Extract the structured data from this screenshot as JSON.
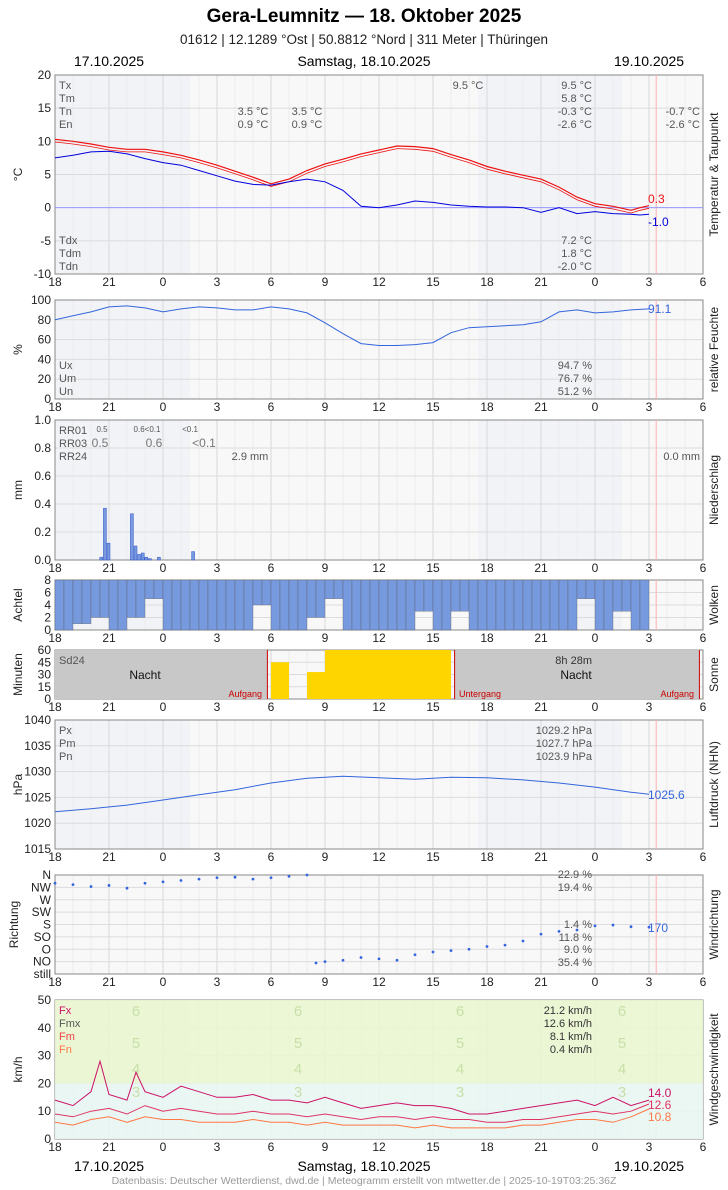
{
  "header": {
    "title": "Gera-Leumnitz  —  18. Oktober 2025",
    "subtitle": "01612  |  12.1289 °Ost  |  50.8812 °Nord  |  311 Meter  |  Thüringen",
    "date_left": "17.10.2025",
    "date_center": "Samstag, 18.10.2025",
    "date_right": "19.10.2025"
  },
  "footer": "Datenbasis: Deutscher Wetterdienst, dwd.de | Meteogramm erstellt von mtwetter.de | 2025-10-19T03:25:36Z",
  "colors": {
    "temp": "#ee1111",
    "dew": "#0000dd",
    "blue": "#3366dd",
    "cloud": "#7799dd",
    "sun": "#ffd500",
    "night": "#c8c8c8",
    "gust": "#cc1166",
    "fm": "#ee4444",
    "fn": "#ff7744"
  },
  "x_axis": {
    "hour_ticks": [
      "18",
      "21",
      "0",
      "3",
      "6",
      "9",
      "12",
      "15",
      "18",
      "21",
      "0",
      "3",
      "6"
    ]
  },
  "chart_data": [
    {
      "id": "temperature",
      "type": "line",
      "ylabel": "°C",
      "side_label": "Temperatur & Taupunkt",
      "ylim": [
        -10,
        20
      ],
      "y_ticks": [
        "20",
        "15",
        "10",
        "5",
        "0",
        "-5",
        "-10"
      ],
      "stats": [
        {
          "label": "Tx",
          "day1": "",
          "day2": "9.5 °C",
          "day3": ""
        },
        {
          "label": "Tm",
          "day1": "",
          "day2": "5.8 °C",
          "day3": ""
        },
        {
          "label": "Tn",
          "day1": "3.5 °C",
          "day2": "-0.3 °C",
          "day3": "-0.7 °C"
        },
        {
          "label": "En",
          "day1": "0.9 °C",
          "day2": "-2.6 °C",
          "day3": "-2.6 °C"
        }
      ],
      "extra_notes": [
        {
          "text": "9.5 °C"
        },
        {
          "text": "3.5 °C"
        },
        {
          "text": "0.9 °C"
        }
      ],
      "dew_stats": [
        {
          "label": "Tdx",
          "value": "7.2 °C"
        },
        {
          "label": "Tdm",
          "value": "1.8 °C"
        },
        {
          "label": "Tdn",
          "value": "-2.0 °C"
        }
      ],
      "last_temp": "0.3",
      "last_dew": "-1.0",
      "series": [
        {
          "name": "temperature",
          "x": [
            -6,
            -5,
            -4,
            -3,
            -2,
            -1,
            0,
            1,
            2,
            3,
            4,
            5,
            6,
            7,
            8,
            9,
            10,
            11,
            12,
            13,
            14,
            15,
            16,
            17,
            18,
            19,
            20,
            21,
            22,
            23,
            24,
            25,
            26,
            26.5,
            27
          ],
          "values": [
            10.3,
            10.0,
            9.6,
            9.1,
            8.8,
            8.8,
            8.4,
            7.9,
            7.2,
            6.4,
            5.5,
            4.6,
            3.6,
            4.3,
            5.6,
            6.6,
            7.3,
            8.1,
            8.7,
            9.3,
            9.2,
            8.9,
            8.0,
            7.2,
            6.2,
            5.5,
            4.9,
            4.3,
            3.1,
            1.6,
            0.6,
            0.2,
            -0.4,
            0.0,
            0.3
          ]
        },
        {
          "name": "dew point",
          "x": [
            -6,
            -5,
            -4,
            -3,
            -2,
            -1,
            0,
            1,
            2,
            3,
            4,
            5,
            6,
            7,
            8,
            9,
            10,
            11,
            12,
            13,
            14,
            15,
            16,
            17,
            18,
            19,
            20,
            21,
            22,
            23,
            24,
            25,
            26,
            26.5,
            27
          ],
          "values": [
            7.5,
            7.9,
            8.4,
            8.5,
            8.1,
            7.4,
            6.8,
            6.4,
            5.6,
            4.8,
            4.0,
            3.5,
            3.4,
            3.9,
            4.3,
            3.9,
            2.6,
            0.2,
            0.0,
            0.4,
            1.0,
            0.8,
            0.4,
            0.2,
            0.1,
            0.1,
            0.0,
            -0.7,
            0.0,
            -0.9,
            -0.6,
            -0.9,
            -1.0,
            -1.1,
            -1.0
          ]
        }
      ]
    },
    {
      "id": "humidity",
      "type": "line",
      "ylabel": "%",
      "side_label": "relative Feuchte",
      "ylim": [
        0,
        100
      ],
      "y_ticks": [
        "100",
        "80",
        "60",
        "40",
        "20",
        "0"
      ],
      "stats": [
        {
          "label": "Ux",
          "value": "94.7 %"
        },
        {
          "label": "Um",
          "value": "76.7 %"
        },
        {
          "label": "Un",
          "value": "51.2 %"
        }
      ],
      "last": "91.1",
      "series": [
        {
          "name": "humidity",
          "x": [
            -6,
            -5,
            -4,
            -3,
            -2,
            -1,
            0,
            1,
            2,
            3,
            4,
            5,
            6,
            7,
            8,
            9,
            10,
            11,
            12,
            13,
            14,
            15,
            16,
            17,
            18,
            19,
            20,
            21,
            22,
            23,
            24,
            25,
            26,
            27
          ],
          "values": [
            80,
            84,
            88,
            93,
            94,
            92,
            88,
            91,
            93,
            92,
            90,
            90,
            93,
            91,
            87,
            77,
            66,
            56,
            54,
            54,
            55,
            57,
            67,
            72,
            73,
            74,
            75,
            78,
            88,
            90,
            87,
            88,
            90,
            91
          ]
        }
      ]
    },
    {
      "id": "precipitation",
      "type": "bar",
      "ylabel": "mm",
      "side_label": "Niederschlag",
      "ylim": [
        0,
        1.0
      ],
      "y_ticks": [
        "1.0",
        "0.8",
        "0.6",
        "0.4",
        "0.2",
        "0.0"
      ],
      "stats": [
        {
          "label": "RR01",
          "notes": [
            "0.5",
            "0.6<0.1",
            "<0.1"
          ]
        },
        {
          "label": "RR03",
          "notes": [
            "0.5",
            "0.6",
            "<0.1"
          ]
        },
        {
          "label": "RR24",
          "notes": [
            "2.9 mm",
            "0.0 mm"
          ]
        }
      ],
      "x": [
        -3.4,
        -3.2,
        -3.0,
        -1.7,
        -1.5,
        -1.3,
        -1.1,
        -0.9,
        -0.7,
        -0.2,
        1.7
      ],
      "values": [
        0.02,
        0.37,
        0.12,
        0.33,
        0.1,
        0.04,
        0.05,
        0.02,
        0.01,
        0.02,
        0.06
      ]
    },
    {
      "id": "clouds",
      "type": "bar",
      "ylabel": "Achtel",
      "side_label": "Wolken",
      "ylim": [
        0,
        8
      ],
      "y_ticks": [
        "8",
        "6",
        "4",
        "2",
        "0"
      ],
      "x": [
        -6,
        -5,
        -4,
        -3,
        -2,
        -1,
        0,
        1,
        2,
        3,
        4,
        5,
        6,
        7,
        8,
        9,
        10,
        11,
        12,
        13,
        14,
        15,
        16,
        17,
        18,
        19,
        20,
        21,
        22,
        23,
        24,
        25,
        26
      ],
      "values": [
        8,
        7,
        6,
        8,
        6,
        3,
        8,
        8,
        8,
        8,
        8,
        4,
        8,
        8,
        6,
        3,
        8,
        8,
        8,
        8,
        5,
        8,
        5,
        8,
        8,
        8,
        8,
        8,
        8,
        3,
        8,
        5,
        8
      ]
    },
    {
      "id": "sunshine",
      "type": "bar",
      "ylabel": "Minuten",
      "side_label": "Sonne",
      "ylim": [
        0,
        60
      ],
      "y_ticks": [
        "60",
        "45",
        "30",
        "15",
        "0"
      ],
      "labels": {
        "sd": "Sd24",
        "sd_value": "8h 28m",
        "night": "Nacht",
        "sunrise": "Aufgang",
        "sunset": "Untergang"
      },
      "x": [
        6,
        7,
        8,
        9,
        10,
        11,
        12,
        13,
        14,
        15
      ],
      "values": [
        45,
        0,
        33,
        60,
        60,
        60,
        60,
        60,
        60,
        60
      ]
    },
    {
      "id": "pressure",
      "type": "line",
      "ylabel": "hPa",
      "side_label": "Luftdruck (NHN)",
      "ylim": [
        1015,
        1040
      ],
      "y_ticks": [
        "1040",
        "1035",
        "1030",
        "1025",
        "1020",
        "1015"
      ],
      "stats": [
        {
          "label": "Px",
          "value": "1029.2 hPa"
        },
        {
          "label": "Pm",
          "value": "1027.7 hPa"
        },
        {
          "label": "Pn",
          "value": "1023.9 hPa"
        }
      ],
      "last": "1025.6",
      "series": [
        {
          "name": "pressure",
          "x": [
            -6,
            -4,
            -2,
            0,
            2,
            4,
            6,
            8,
            10,
            12,
            14,
            16,
            18,
            20,
            22,
            24,
            26,
            27
          ],
          "values": [
            1022.2,
            1022.8,
            1023.5,
            1024.5,
            1025.5,
            1026.5,
            1027.8,
            1028.7,
            1029.1,
            1028.8,
            1028.5,
            1028.9,
            1028.8,
            1028.4,
            1027.8,
            1027.0,
            1026.0,
            1025.6
          ]
        }
      ]
    },
    {
      "id": "wind_direction",
      "type": "scatter",
      "ylabel": "Richtung",
      "side_label": "Windrichtung",
      "y_ticks": [
        "N",
        "NW",
        "W",
        "SW",
        "S",
        "SO",
        "O",
        "NO",
        "still"
      ],
      "stats": [
        {
          "value": "22.9 %"
        },
        {
          "value": "19.4 %"
        },
        {
          "value": "1.4 %"
        },
        {
          "value": "11.8 %"
        },
        {
          "value": "9.0 %"
        },
        {
          "value": "35.4 %"
        }
      ],
      "last": "170",
      "x": [
        -6,
        -5,
        -4,
        -3,
        -2,
        -1,
        0,
        1,
        2,
        3,
        4,
        5,
        6,
        7,
        8,
        8.5,
        9,
        10,
        11,
        12,
        13,
        14,
        15,
        16,
        17,
        18,
        19,
        20,
        21,
        22,
        23,
        24,
        25,
        26,
        27
      ],
      "values": [
        330,
        325,
        318,
        322,
        312,
        330,
        335,
        340,
        345,
        350,
        352,
        345,
        350,
        355,
        360,
        40,
        45,
        50,
        60,
        55,
        50,
        70,
        80,
        85,
        90,
        100,
        105,
        120,
        145,
        155,
        160,
        175,
        178,
        172,
        170
      ]
    },
    {
      "id": "wind_speed",
      "type": "line",
      "ylabel": "km/h",
      "side_label": "Windgeschwindigkeit",
      "ylim": [
        0,
        50
      ],
      "y_ticks": [
        "50",
        "40",
        "30",
        "20",
        "10",
        "0"
      ],
      "beaufort": [
        "6",
        "5",
        "4",
        "3"
      ],
      "stats": [
        {
          "label": "Fx",
          "value": "21.2 km/h"
        },
        {
          "label": "Fmx",
          "value": "12.6 km/h"
        },
        {
          "label": "Fm",
          "value": "8.1 km/h"
        },
        {
          "label": "Fn",
          "value": "0.4 km/h"
        }
      ],
      "last_values": [
        "14.0",
        "12.6",
        "10.8"
      ],
      "series": [
        {
          "name": "Fx",
          "x": [
            -6,
            -5,
            -4,
            -3.5,
            -3,
            -2,
            -1.5,
            -1,
            0,
            1,
            2,
            3,
            4,
            5,
            6,
            7,
            8,
            9,
            10,
            11,
            12,
            13,
            14,
            15,
            16,
            17,
            18,
            19,
            20,
            21,
            22,
            23,
            24,
            25,
            26,
            27
          ],
          "values": [
            14,
            12,
            17,
            28,
            16,
            14,
            24,
            17,
            15,
            19,
            17,
            15,
            15,
            16,
            14,
            14,
            13,
            15,
            13,
            11,
            12,
            13,
            12,
            12,
            11,
            9,
            9,
            10,
            11,
            12,
            13,
            14,
            12,
            15,
            12,
            14
          ]
        },
        {
          "name": "Fmx",
          "x": [
            -6,
            -5,
            -4,
            -3,
            -2,
            -1,
            0,
            1,
            2,
            3,
            4,
            5,
            6,
            7,
            8,
            9,
            10,
            11,
            12,
            13,
            14,
            15,
            16,
            17,
            18,
            19,
            20,
            21,
            22,
            23,
            24,
            25,
            26,
            27
          ],
          "values": [
            9,
            8,
            10,
            11,
            9,
            12,
            10,
            11,
            10,
            9,
            9,
            10,
            9,
            9,
            8,
            9,
            8,
            7,
            8,
            8,
            7,
            8,
            7,
            7,
            6,
            6,
            7,
            7,
            8,
            9,
            10,
            9,
            10,
            12.6
          ]
        },
        {
          "name": "Fm",
          "x": [
            -6,
            -5,
            -4,
            -3,
            -2,
            -1,
            0,
            1,
            2,
            3,
            4,
            5,
            6,
            7,
            8,
            9,
            10,
            11,
            12,
            13,
            14,
            15,
            16,
            17,
            18,
            19,
            20,
            21,
            22,
            23,
            24,
            25,
            26,
            27
          ],
          "values": [
            6,
            5,
            7,
            8,
            6,
            8,
            7,
            7,
            6,
            6,
            6,
            7,
            6,
            6,
            5,
            6,
            5,
            5,
            5,
            5,
            4,
            5,
            4,
            4,
            4,
            4,
            5,
            5,
            6,
            7,
            7,
            6,
            8,
            10.8
          ]
        }
      ]
    }
  ]
}
